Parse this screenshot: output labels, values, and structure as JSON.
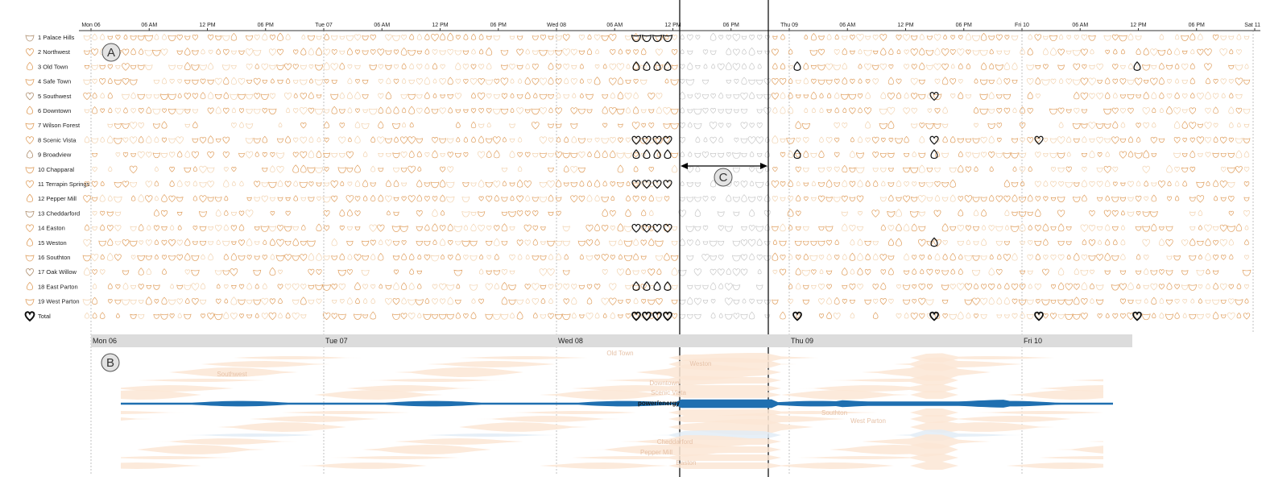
{
  "timeline": {
    "day_ticks": [
      "Mon 06",
      "Tue 07",
      "Wed 08",
      "Thu 09",
      "Fri 10",
      "Sat 11"
    ],
    "hour_ticks": [
      "06 AM",
      "12 PM",
      "06 PM"
    ]
  },
  "neighborhoods": [
    {
      "label": "1 Palace Hills"
    },
    {
      "label": "2 Northwest"
    },
    {
      "label": "3 Old Town"
    },
    {
      "label": "4 Safe Town"
    },
    {
      "label": "5 Southwest"
    },
    {
      "label": "6 Downtown"
    },
    {
      "label": "7 Wilson Forest"
    },
    {
      "label": "8 Scenic Vista"
    },
    {
      "label": "9 Broadview"
    },
    {
      "label": "10 Chapparal"
    },
    {
      "label": "11 Terrapin Springs"
    },
    {
      "label": "12 Pepper Mill"
    },
    {
      "label": "13 Cheddarford"
    },
    {
      "label": "14 Easton"
    },
    {
      "label": "15 Weston"
    },
    {
      "label": "16 Southton"
    },
    {
      "label": "17 Oak Willow"
    },
    {
      "label": "18 East Parton"
    },
    {
      "label": "19 West Parton"
    },
    {
      "label": "Total"
    }
  ],
  "badges": {
    "a": "A",
    "b": "B",
    "c": "C"
  },
  "overview_days": [
    "Mon 06",
    "Tue 07",
    "Wed 08",
    "Thu 09",
    "Fri 10"
  ],
  "stream_labels": {
    "focus": "power/energy",
    "faded": [
      "Old Town",
      "Weston",
      "Southwest",
      "Downtown",
      "Scenic Vista",
      "Southton",
      "West Parton",
      "Cheddarford",
      "Pepper Mill",
      "Easton"
    ]
  },
  "colors": {
    "glyph": "#e0a060",
    "glyph_faded": "#f2d3b0",
    "glyph_highlight": "#111111",
    "stream_focus": "#1f6fb0",
    "stream_faded": "#fce6d5",
    "stream_faded_blue": "#e2ecf6",
    "axis": "#333333",
    "day_bar": "#dcdcdc"
  }
}
